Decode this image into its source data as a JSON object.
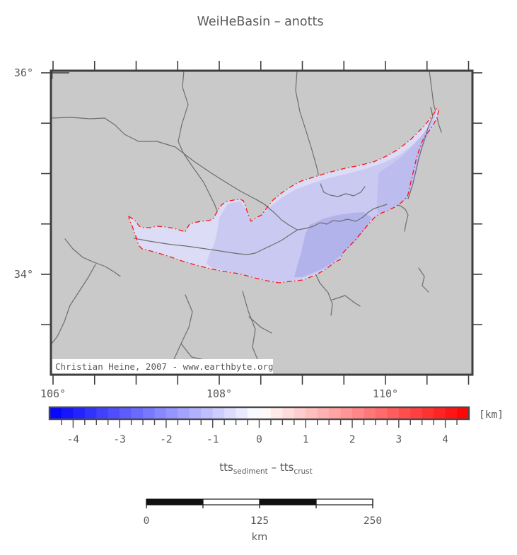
{
  "title": "WeiHeBasin – anotts",
  "map": {
    "background_color": "#c9c9c9",
    "outline_color": "#fa1414",
    "watermark": "Christian Heine, 2007 - www.earthbyte.org",
    "lon_ticks": [
      {
        "label": "106°",
        "value": 106
      },
      {
        "label": "108°",
        "value": 108
      },
      {
        "label": "110°",
        "value": 110
      }
    ],
    "lat_ticks": [
      {
        "label": "36°",
        "value": 36
      },
      {
        "label": "34°",
        "value": 34
      }
    ],
    "minor_tick_deg": 0.5
  },
  "colorbar": {
    "min": -4.5,
    "max": 4.5,
    "step": 0.25,
    "tick_values": [
      -4,
      -3,
      -2,
      -1,
      0,
      1,
      2,
      3,
      4
    ],
    "tick_labels": [
      "-4",
      "-3",
      "-2",
      "-1",
      "0",
      "1",
      "2",
      "3",
      "4"
    ],
    "unit_label": "[km]",
    "negative_color": "#0000ff",
    "zero_color": "#ffffff",
    "positive_color": "#ff0000"
  },
  "quantity_label": {
    "term1_base": "tts",
    "term1_sub": "sediment",
    "operator": " – ",
    "term2_base": "tts",
    "term2_sub": "crust"
  },
  "scalebar": {
    "tick_labels": [
      "0",
      "125",
      "250"
    ],
    "unit_label": "km",
    "length_km": 250
  }
}
